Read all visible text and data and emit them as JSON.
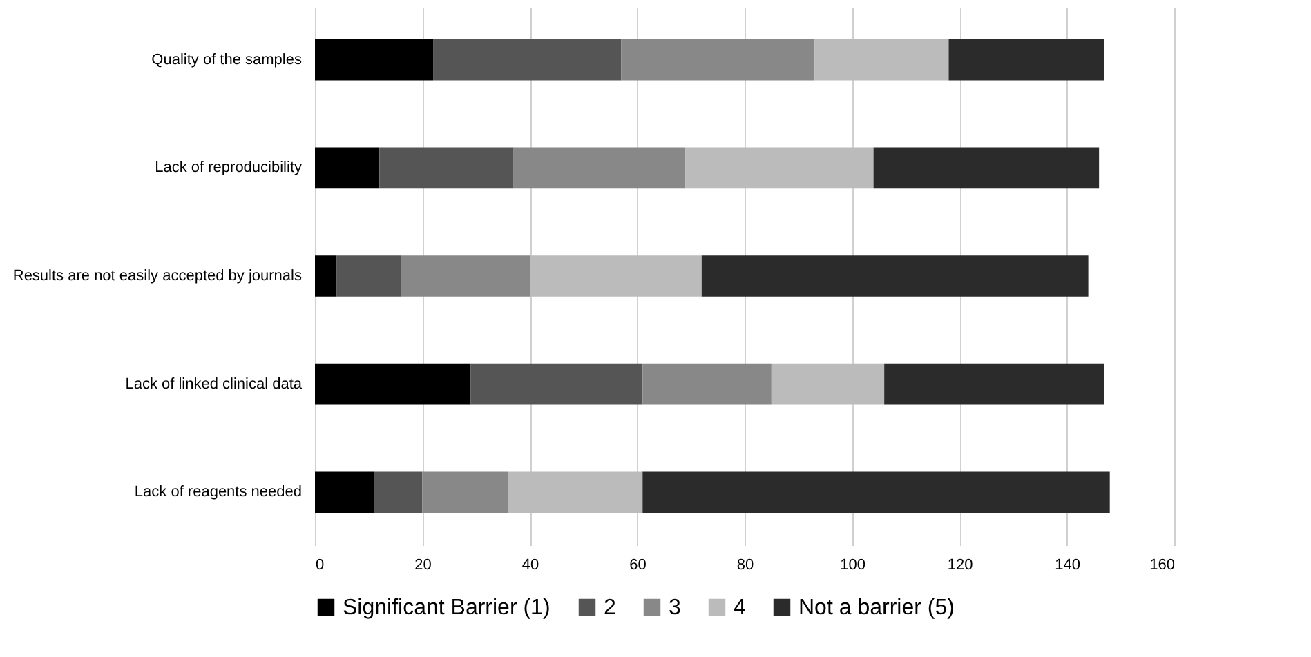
{
  "chart_data": {
    "type": "bar",
    "orientation": "horizontal",
    "stacked": true,
    "categories": [
      "Quality of the samples",
      "Lack of reproducibility",
      "Results are not easily accepted by journals",
      "Lack of linked clinical data",
      "Lack of reagents needed"
    ],
    "series": [
      {
        "name": "Significant Barrier (1)",
        "color": "#000000",
        "values": [
          22,
          12,
          4,
          29,
          11
        ]
      },
      {
        "name": "2",
        "color": "#555555",
        "values": [
          35,
          25,
          12,
          32,
          9
        ]
      },
      {
        "name": "3",
        "color": "#888888",
        "values": [
          36,
          32,
          24,
          24,
          16
        ]
      },
      {
        "name": "4",
        "color": "#bbbbbb",
        "values": [
          25,
          35,
          32,
          21,
          25
        ]
      },
      {
        "name": "Not a barrier (5)",
        "color": "#2b2b2b",
        "values": [
          29,
          42,
          72,
          41,
          87
        ]
      }
    ],
    "xlim": [
      0,
      160
    ],
    "xticks": [
      0,
      20,
      40,
      60,
      80,
      100,
      120,
      140,
      160
    ],
    "grid": "x",
    "legend": "bottom"
  }
}
